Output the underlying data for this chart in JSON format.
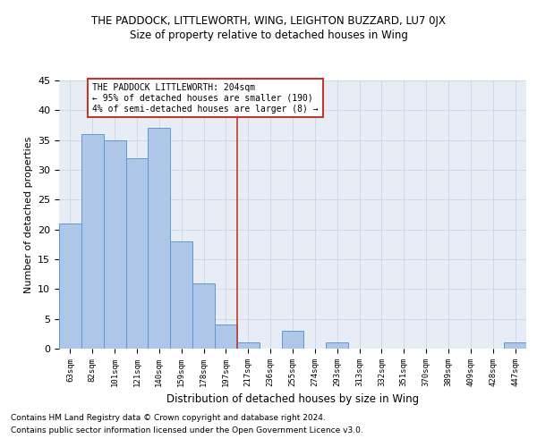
{
  "title": "THE PADDOCK, LITTLEWORTH, WING, LEIGHTON BUZZARD, LU7 0JX",
  "subtitle": "Size of property relative to detached houses in Wing",
  "xlabel": "Distribution of detached houses by size in Wing",
  "ylabel": "Number of detached properties",
  "footnote1": "Contains HM Land Registry data © Crown copyright and database right 2024.",
  "footnote2": "Contains public sector information licensed under the Open Government Licence v3.0.",
  "categories": [
    "63sqm",
    "82sqm",
    "101sqm",
    "121sqm",
    "140sqm",
    "159sqm",
    "178sqm",
    "197sqm",
    "217sqm",
    "236sqm",
    "255sqm",
    "274sqm",
    "293sqm",
    "313sqm",
    "332sqm",
    "351sqm",
    "370sqm",
    "389sqm",
    "409sqm",
    "428sqm",
    "447sqm"
  ],
  "values": [
    21,
    36,
    35,
    32,
    37,
    18,
    11,
    4,
    1,
    0,
    3,
    0,
    1,
    0,
    0,
    0,
    0,
    0,
    0,
    0,
    1
  ],
  "bar_color": "#aec6e8",
  "bar_edge_color": "#5b9bd5",
  "grid_color": "#c8d4e8",
  "background_color": "#e8edf5",
  "vline_color": "#c0392b",
  "annotation_text": "THE PADDOCK LITTLEWORTH: 204sqm\n← 95% of detached houses are smaller (190)\n4% of semi-detached houses are larger (8) →",
  "annotation_box_color": "#c0392b",
  "ylim": [
    0,
    45
  ],
  "yticks": [
    0,
    5,
    10,
    15,
    20,
    25,
    30,
    35,
    40,
    45
  ],
  "vline_pos": 7.5
}
